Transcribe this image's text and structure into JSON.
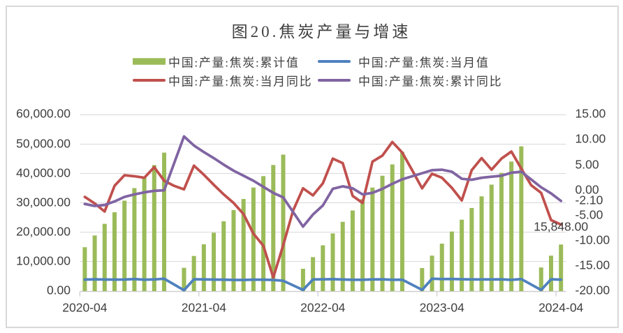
{
  "title": "图20.焦炭产量与增速",
  "legend": [
    {
      "label": "中国:产量:焦炭:累计值",
      "swatch": "bar",
      "color": "#9BBB59"
    },
    {
      "label": "中国:产量:焦炭:当月值",
      "swatch": "line",
      "color": "#4F81BD"
    },
    {
      "label": "中国:产量:焦炭:当月同比",
      "swatch": "line",
      "color": "#C0504D"
    },
    {
      "label": "中国:产量:焦炭:累计同比",
      "swatch": "line",
      "color": "#8064A2"
    }
  ],
  "chart_data": {
    "type": "combo",
    "categories": [
      "2020-04",
      "2020-05",
      "2020-06",
      "2020-07",
      "2020-08",
      "2020-09",
      "2020-10",
      "2020-11",
      "2020-12",
      "2021-01",
      "2021-02",
      "2021-03",
      "2021-04",
      "2021-05",
      "2021-06",
      "2021-07",
      "2021-08",
      "2021-09",
      "2021-10",
      "2021-11",
      "2021-12",
      "2022-01",
      "2022-02",
      "2022-03",
      "2022-04",
      "2022-05",
      "2022-06",
      "2022-07",
      "2022-08",
      "2022-09",
      "2022-10",
      "2022-11",
      "2022-12",
      "2023-01",
      "2023-02",
      "2023-03",
      "2023-04",
      "2023-05",
      "2023-06",
      "2023-07",
      "2023-08",
      "2023-09",
      "2023-10",
      "2023-11",
      "2023-12",
      "2024-01",
      "2024-02",
      "2024-03",
      "2024-04"
    ],
    "series": [
      {
        "name": "中国:产量:焦炭:累计值",
        "type": "bar",
        "axis": "left",
        "color": "#9BBB59",
        "values": [
          14934,
          18935,
          22894,
          26825,
          30777,
          35043,
          38923,
          42887,
          47116,
          null,
          7919,
          11958,
          15941,
          19867,
          23756,
          27559,
          31346,
          35237,
          39123,
          42917,
          46446,
          null,
          7599,
          11563,
          15579,
          19641,
          23579,
          27427,
          31272,
          35241,
          39255,
          43117,
          47344,
          null,
          7850,
          12063,
          16150,
          20271,
          24299,
          28274,
          32238,
          36229,
          40238,
          44078,
          49260,
          null,
          8039,
          12059,
          15848
        ]
      },
      {
        "name": "中国:产量:焦炭:当月值",
        "type": "line",
        "axis": "left",
        "color": "#4F81BD",
        "values": [
          3934,
          4001,
          3959,
          3931,
          3952,
          4100,
          3880,
          3964,
          4229,
          null,
          300,
          4039,
          3983,
          3926,
          3889,
          3803,
          3787,
          3891,
          3886,
          3794,
          3529,
          null,
          400,
          3964,
          4016,
          4062,
          3938,
          3848,
          3845,
          3969,
          4014,
          3862,
          3900,
          null,
          420,
          4213,
          4087,
          4121,
          4028,
          3975,
          3964,
          3991,
          4009,
          3840,
          4100,
          null,
          390,
          4040,
          3900
        ]
      },
      {
        "name": "中国:产量:焦炭:当月同比",
        "type": "line",
        "axis": "right",
        "color": "#C0504D",
        "values": [
          -1.3,
          -2.6,
          -4.2,
          0.9,
          3.0,
          2.8,
          2.5,
          4.6,
          1.9,
          0.9,
          0.2,
          4.9,
          3.1,
          1.1,
          -0.8,
          -2.5,
          -4.7,
          -8.6,
          -11.0,
          -17.3,
          -10.9,
          -4.0,
          0.4,
          -1.0,
          1.4,
          6.3,
          5.4,
          -1.1,
          -2.5,
          5.7,
          6.9,
          9.6,
          7.5,
          4.0,
          0.4,
          3.3,
          2.5,
          0.5,
          -2.0,
          4.0,
          6.4,
          4.1,
          6.3,
          7.7,
          4.3,
          1.0,
          -0.5,
          -5.9,
          -6.8
        ]
      },
      {
        "name": "中国:产量:焦炭:累计同比",
        "type": "line",
        "axis": "right",
        "color": "#8064A2",
        "values": [
          -2.7,
          -3.1,
          -2.9,
          -2.2,
          -1.3,
          -0.8,
          -0.4,
          -0.1,
          0.0,
          null,
          10.7,
          8.9,
          7.6,
          6.4,
          5.1,
          3.9,
          2.9,
          1.9,
          0.7,
          -0.5,
          -1.4,
          null,
          -7.2,
          -4.8,
          -3.0,
          0.3,
          0.8,
          0.4,
          -0.8,
          -0.5,
          0.3,
          1.3,
          2.2,
          null,
          3.4,
          4.0,
          4.1,
          3.7,
          2.3,
          2.1,
          2.5,
          2.7,
          2.9,
          3.5,
          3.7,
          null,
          0.6,
          -0.6,
          -2.1
        ]
      }
    ],
    "left_axis": {
      "min": 0,
      "max": 60000,
      "step": 10000,
      "tick_labels": [
        "0.00",
        "10,000.00",
        "20,000.00",
        "30,000.00",
        "40,000.00",
        "50,000.00",
        "60,000.00"
      ]
    },
    "right_axis": {
      "min": -20,
      "max": 15,
      "step": 5,
      "tick_labels": [
        "-20.00",
        "-15.00",
        "-10.00",
        "-5.00",
        "0.00",
        "5.00",
        "10.00",
        "15.00"
      ]
    },
    "x_axis": {
      "tick_labels": [
        "2020-04",
        "2021-04",
        "2022-04",
        "2023-04",
        "2024-04"
      ]
    },
    "annotations": [
      {
        "text": "15,848.00",
        "series": "中国:产量:焦炭:累计值",
        "category": "2024-04"
      },
      {
        "text": "-2.10",
        "series": "中国:产量:焦炭:累计同比",
        "category": "2024-04"
      }
    ],
    "grid": true,
    "legend_position": "top"
  }
}
